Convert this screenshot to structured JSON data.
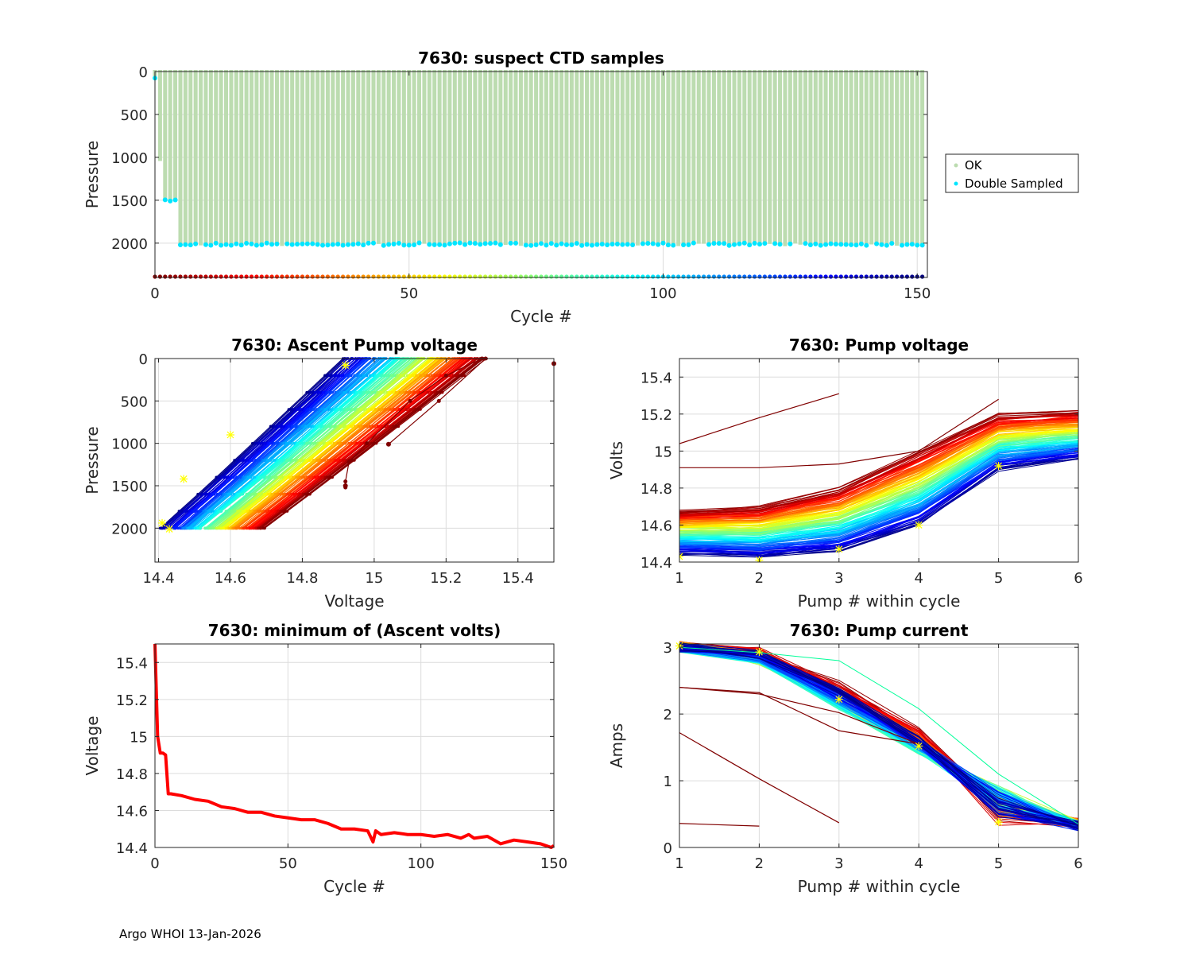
{
  "footer": "Argo WHOI 13-Jan-2026",
  "chart_data": [
    {
      "id": "suspect",
      "type": "bar",
      "title": "7630: suspect CTD samples",
      "xlabel": "Cycle #",
      "ylabel": "Pressure",
      "xlim": [
        0,
        152
      ],
      "ylim": [
        0,
        2400
      ],
      "y_reversed": true,
      "xticks": [
        0,
        50,
        100,
        150
      ],
      "yticks": [
        0,
        500,
        1000,
        1500,
        2000
      ],
      "grid": true,
      "legend": {
        "placement": "outside-right",
        "entries": [
          {
            "label": "OK",
            "color": "#bcdcb0"
          },
          {
            "label": "Double Sampled",
            "color": "#00e5ff"
          }
        ]
      },
      "profile_depths_note": "cycle 0: ~100, cycle 1: ~1030, cycles 2-4: ~1510, cycles 5-151: ~2020",
      "profile_depths": {
        "c0": 100,
        "c1": 1030,
        "c2_4": 1510,
        "rest": 2020
      },
      "cycle_count": 152,
      "colorbar_row": "jet-colored markers along bottom at pressure ~2400, one per cycle"
    },
    {
      "id": "ascent",
      "type": "line",
      "title": "7630: Ascent Pump voltage",
      "xlabel": "Voltage",
      "ylabel": "Pressure",
      "xlim": [
        14.39,
        15.5
      ],
      "ylim": [
        0,
        2400
      ],
      "y_reversed": true,
      "xticks": [
        14.4,
        14.6,
        14.8,
        15.0,
        15.2,
        15.4
      ],
      "xticklabels": [
        "14.4",
        "14.6",
        "14.8",
        "15",
        "15.2",
        "15.4"
      ],
      "yticks": [
        0,
        500,
        1000,
        1500,
        2000
      ],
      "grid": true,
      "series_description": "one line per cycle, jet colormap (dark red early cycles -> dark blue late cycles); voltage at 2000 dbar vs surface",
      "envelope": {
        "deep_voltage_range": [
          14.41,
          14.7
        ],
        "surface_voltage_range": [
          14.92,
          15.31
        ]
      },
      "outliers": [
        {
          "v": 15.5,
          "p": 60
        },
        {
          "v": 14.92,
          "p": 1500
        },
        {
          "v": 15.04,
          "p": 1010
        }
      ],
      "yellow_markers": [
        {
          "v": 14.92,
          "p": 80
        },
        {
          "v": 14.6,
          "p": 900
        },
        {
          "v": 14.47,
          "p": 1420
        },
        {
          "v": 14.41,
          "p": 1940
        },
        {
          "v": 14.43,
          "p": 2010
        }
      ]
    },
    {
      "id": "pumpv",
      "type": "line",
      "title": "7630: Pump voltage",
      "xlabel": "Pump # within cycle",
      "ylabel": "Volts",
      "xlim": [
        1,
        6
      ],
      "ylim": [
        14.4,
        15.5
      ],
      "xticks": [
        1,
        2,
        3,
        4,
        5,
        6
      ],
      "yticks": [
        14.4,
        14.6,
        14.8,
        15.0,
        15.2,
        15.4
      ],
      "yticklabels": [
        "14.4",
        "14.6",
        "14.8",
        "15",
        "15.2",
        "15.4"
      ],
      "grid": true,
      "series_description": "one line per cycle, jet colormap",
      "representative_series": [
        {
          "name": "early (red)",
          "values": [
            14.68,
            14.7,
            14.8,
            15.0,
            15.2,
            15.22
          ]
        },
        {
          "name": "mid (yellow)",
          "values": [
            14.56,
            14.56,
            14.63,
            14.82,
            15.05,
            15.08
          ]
        },
        {
          "name": "mid (green)",
          "values": [
            14.52,
            14.51,
            14.57,
            14.72,
            14.95,
            15.02
          ]
        },
        {
          "name": "late (blue)",
          "values": [
            14.45,
            14.43,
            14.46,
            14.6,
            14.9,
            14.96
          ]
        },
        {
          "name": "outlier 1",
          "values": [
            15.04,
            15.18,
            15.31,
            null,
            null,
            null
          ]
        },
        {
          "name": "outlier 2",
          "values": [
            14.91,
            14.91,
            14.93,
            15.0,
            15.28,
            null
          ]
        }
      ]
    },
    {
      "id": "minv",
      "type": "line",
      "title": "7630: minimum of (Ascent volts)",
      "xlabel": "Cycle #",
      "ylabel": "Voltage",
      "xlim": [
        0,
        150
      ],
      "ylim": [
        14.4,
        15.5
      ],
      "xticks": [
        0,
        50,
        100,
        150
      ],
      "yticks": [
        14.4,
        14.6,
        14.8,
        15.0,
        15.2,
        15.4
      ],
      "yticklabels": [
        "14.4",
        "14.6",
        "14.8",
        "15",
        "15.2",
        "15.4"
      ],
      "grid": true,
      "x": [
        0,
        1,
        2,
        3,
        4,
        5,
        6,
        10,
        15,
        20,
        25,
        30,
        35,
        40,
        45,
        50,
        55,
        60,
        65,
        70,
        75,
        80,
        82,
        83,
        85,
        90,
        95,
        100,
        105,
        110,
        115,
        118,
        120,
        125,
        130,
        135,
        140,
        145,
        149,
        150
      ],
      "y": [
        15.5,
        15.0,
        14.91,
        14.91,
        14.9,
        14.69,
        14.69,
        14.68,
        14.66,
        14.65,
        14.62,
        14.61,
        14.59,
        14.59,
        14.57,
        14.56,
        14.55,
        14.55,
        14.53,
        14.5,
        14.5,
        14.49,
        14.43,
        14.49,
        14.47,
        14.48,
        14.47,
        14.47,
        14.46,
        14.47,
        14.45,
        14.47,
        14.45,
        14.46,
        14.42,
        14.44,
        14.43,
        14.42,
        14.4,
        14.41
      ],
      "color": "#ff0000"
    },
    {
      "id": "pumpc",
      "type": "line",
      "title": "7630: Pump current",
      "xlabel": "Pump # within cycle",
      "ylabel": "Amps",
      "xlim": [
        1,
        6
      ],
      "ylim": [
        0,
        3.05
      ],
      "xticks": [
        1,
        2,
        3,
        4,
        5,
        6
      ],
      "yticks": [
        0,
        1,
        2,
        3
      ],
      "grid": true,
      "series_description": "one line per cycle, jet colormap",
      "representative_series": [
        {
          "name": "typical (blue)",
          "values": [
            3.0,
            2.9,
            2.35,
            1.6,
            0.6,
            0.32
          ]
        },
        {
          "name": "typical (green)",
          "values": [
            3.0,
            2.8,
            2.1,
            1.45,
            0.8,
            0.33
          ]
        },
        {
          "name": "typical (red)",
          "values": [
            3.02,
            2.95,
            2.45,
            1.75,
            0.45,
            0.38
          ]
        },
        {
          "name": "high (cyan)",
          "values": [
            3.0,
            2.92,
            2.8,
            2.08,
            1.1,
            0.35
          ]
        },
        {
          "name": "outlier a",
          "values": [
            2.4,
            2.3,
            2.02,
            1.55,
            null,
            null
          ]
        },
        {
          "name": "outlier b",
          "values": [
            2.4,
            2.32,
            1.75,
            1.55,
            null,
            null
          ]
        },
        {
          "name": "outlier c",
          "values": [
            1.72,
            1.03,
            0.37,
            null,
            null,
            null
          ]
        },
        {
          "name": "outlier d",
          "values": [
            0.36,
            0.32,
            null,
            null,
            null,
            null
          ]
        }
      ],
      "yellow_markers": [
        {
          "x": 1,
          "y": 3.02
        },
        {
          "x": 2,
          "y": 2.93
        },
        {
          "x": 3,
          "y": 2.22
        },
        {
          "x": 4,
          "y": 1.52
        },
        {
          "x": 5,
          "y": 0.38
        }
      ]
    }
  ]
}
